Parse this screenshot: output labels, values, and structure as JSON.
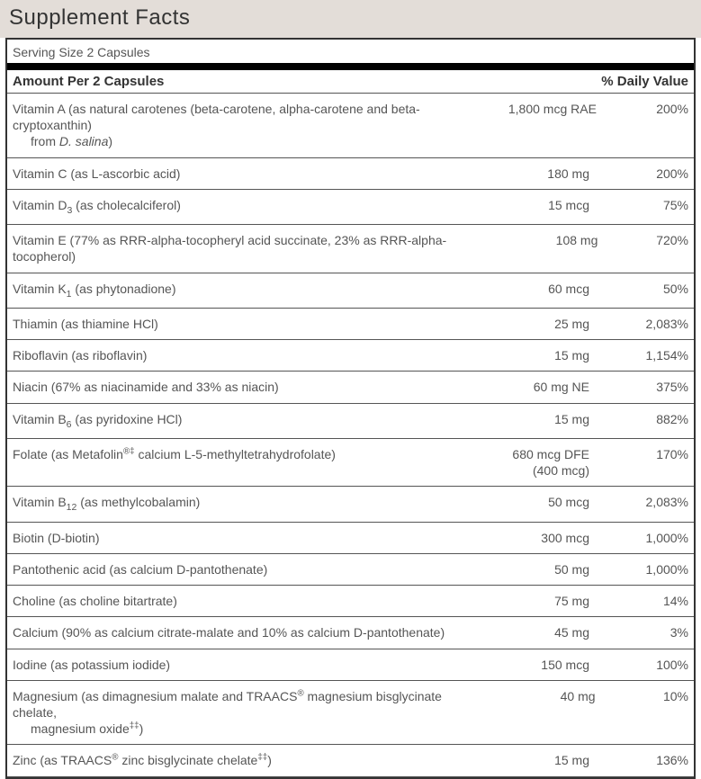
{
  "colors": {
    "header_bg": "#e3ddd8",
    "border": "#333333",
    "text": "#333333",
    "row_text": "#555555",
    "thick_rule": "#000000"
  },
  "typography": {
    "title_fontsize": 24,
    "header_fontsize": 15,
    "row_fontsize": 14
  },
  "title": "Supplement Facts",
  "serving_size": "Serving Size 2 Capsules",
  "col_headers": {
    "name": "Amount Per 2 Capsules",
    "dv": "% Daily Value"
  },
  "rows": [
    {
      "name_html": "Vitamin A (as natural carotenes (beta-carotene, alpha-carotene and beta-cryptoxanthin)<span class=\"sub-line\">from <i>D. salina</i>)</span>",
      "amount": "1,800 mcg RAE",
      "dv": "200%"
    },
    {
      "name_html": "Vitamin C (as L-ascorbic acid)",
      "amount": "180 mg",
      "dv": "200%"
    },
    {
      "name_html": "Vitamin D<sub>3</sub> (as cholecalciferol)",
      "amount": "15 mcg",
      "dv": "75%"
    },
    {
      "name_html": "Vitamin E (77% as RRR-alpha-tocopheryl acid succinate, 23% as RRR-alpha-tocopherol)",
      "amount": "108 mg",
      "dv": "720%"
    },
    {
      "name_html": "Vitamin K<sub>1</sub> (as phytonadione)",
      "amount": "60 mcg",
      "dv": "50%"
    },
    {
      "name_html": "Thiamin (as thiamine HCl)",
      "amount": "25 mg",
      "dv": "2,083%"
    },
    {
      "name_html": "Riboflavin (as riboflavin)",
      "amount": "15 mg",
      "dv": "1,154%"
    },
    {
      "name_html": "Niacin (67% as niacinamide and 33% as niacin)",
      "amount": "60 mg NE",
      "dv": "375%"
    },
    {
      "name_html": "Vitamin B<sub>6</sub> (as pyridoxine HCl)",
      "amount": "15 mg",
      "dv": "882%"
    },
    {
      "name_html": "Folate (as Metafolin<sup>®‡</sup> calcium L-5-methyltetrahydrofolate)",
      "amount_html": "680 mcg DFE<br>(400 mcg)",
      "dv": "170%"
    },
    {
      "name_html": "Vitamin B<sub>12</sub> (as methylcobalamin)",
      "amount": "50 mcg",
      "dv": "2,083%"
    },
    {
      "name_html": "Biotin (D-biotin)",
      "amount": "300 mcg",
      "dv": "1,000%"
    },
    {
      "name_html": "Pantothenic acid (as calcium D-pantothenate)",
      "amount": "50 mg",
      "dv": "1,000%"
    },
    {
      "name_html": "Choline (as choline bitartrate)",
      "amount": "75 mg",
      "dv": "14%"
    },
    {
      "name_html": "Calcium (90% as calcium citrate-malate and 10% as calcium D-pantothenate)",
      "amount": "45 mg",
      "dv": "3%"
    },
    {
      "name_html": "Iodine (as potassium iodide)",
      "amount": "150 mcg",
      "dv": "100%"
    },
    {
      "name_html": "Magnesium (as dimagnesium malate and TRAACS<sup>®</sup> magnesium bisglycinate chelate,<span class=\"sub-line\">magnesium oxide<sup>‡‡</sup>)</span>",
      "amount": "40 mg",
      "dv": "10%"
    },
    {
      "name_html": "Zinc (as TRAACS<sup>®</sup> zinc bisglycinate chelate<sup>‡‡</sup>)",
      "amount": "15 mg",
      "dv": "136%"
    }
  ]
}
